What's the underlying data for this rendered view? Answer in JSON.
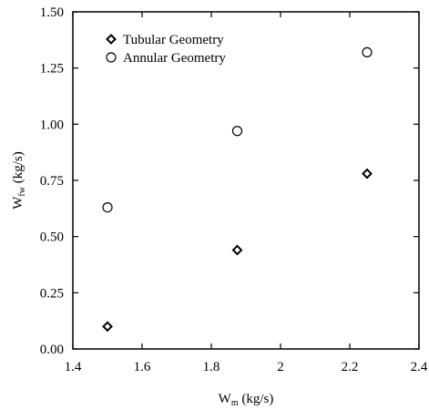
{
  "chart_data": {
    "type": "scatter",
    "xlabel": {
      "main": "W",
      "sub": "m",
      "unit": " (kg/s)"
    },
    "ylabel": {
      "main": "W",
      "sub": "fw",
      "unit": " (kg/s)"
    },
    "xlim": [
      1.4,
      2.4
    ],
    "ylim": [
      0,
      1.5
    ],
    "x_ticks": [
      1.4,
      1.6,
      1.8,
      2.0,
      2.2,
      2.4
    ],
    "x_tick_labels": [
      "1.4",
      "1.6",
      "1.8",
      "2",
      "2.2",
      "2.4"
    ],
    "y_ticks": [
      0,
      0.25,
      0.5,
      0.75,
      1.0,
      1.25,
      1.5
    ],
    "y_tick_labels": [
      "0.00",
      "0.25",
      "0.50",
      "0.75",
      "1.00",
      "1.25",
      "1.50"
    ],
    "grid": false,
    "legend_position": "top-left",
    "series": [
      {
        "name": "Tubular Geometry",
        "marker": "diamond",
        "x": [
          1.5,
          1.875,
          2.25
        ],
        "y": [
          0.1,
          0.44,
          0.78
        ]
      },
      {
        "name": "Annular Geometry",
        "marker": "circle",
        "x": [
          1.5,
          1.875,
          2.25
        ],
        "y": [
          0.63,
          0.97,
          1.32
        ]
      }
    ]
  }
}
